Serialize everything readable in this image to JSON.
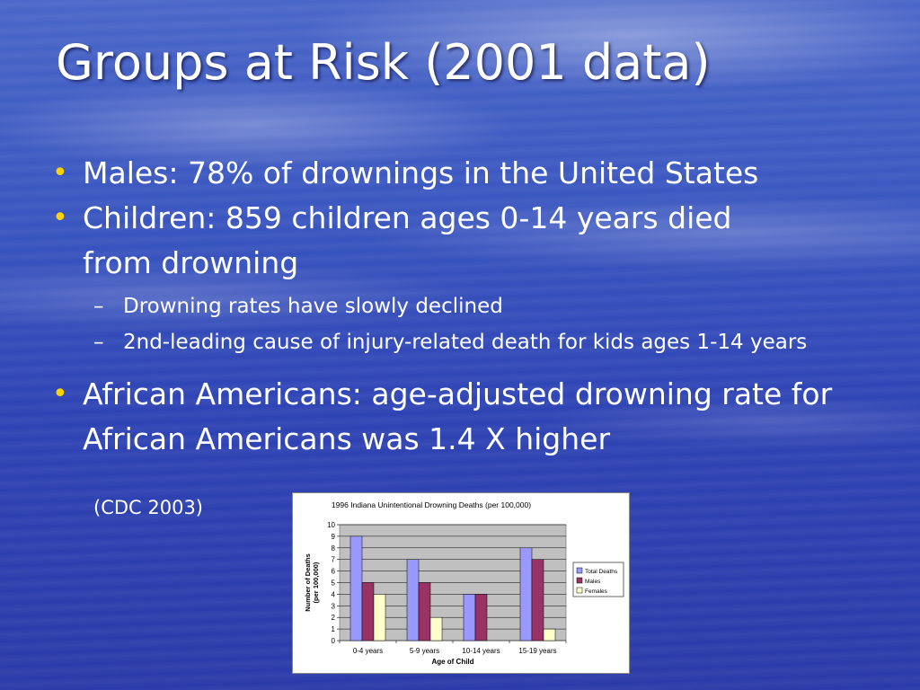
{
  "slide": {
    "title": "Groups at Risk (2001 data)",
    "bullets": [
      {
        "text": "Males:  78% of drownings in the United States"
      },
      {
        "text": "Children:  859 children ages 0-14 years died from drowning",
        "subs": [
          "Drowning rates have slowly declined",
          "2nd-leading cause of injury-related death for kids ages 1-14 years"
        ]
      },
      {
        "text": "African Americans:  age-adjusted drowning rate for African Americans was 1.4 X higher"
      }
    ],
    "citation": "(CDC 2003)",
    "bullet_glyph": "•",
    "dash_glyph": "–",
    "colors": {
      "bullet": "#ffd200",
      "text": "#ffffff"
    }
  },
  "chart_data": {
    "type": "bar",
    "title": "1996 Indiana Unintentional Drowning Deaths (per 100,000)",
    "xlabel": "Age of Child",
    "ylabel": "Number of Deaths (per 100,000)",
    "ylim": [
      0,
      10
    ],
    "yticks": [
      0,
      1,
      2,
      3,
      4,
      5,
      6,
      7,
      8,
      9,
      10
    ],
    "categories": [
      "0-4 years",
      "5-9 years",
      "10-14 years",
      "15-19 years"
    ],
    "series": [
      {
        "name": "Total Deaths",
        "values": [
          9,
          7,
          4,
          8
        ],
        "color": "#9999ff"
      },
      {
        "name": "Males",
        "values": [
          5,
          5,
          4,
          7
        ],
        "color": "#993366"
      },
      {
        "name": "Females",
        "values": [
          4,
          2,
          0,
          1
        ],
        "color": "#ffffcc"
      }
    ],
    "legend": "right",
    "grid": true,
    "plot_bg": "#c0c0c0"
  }
}
